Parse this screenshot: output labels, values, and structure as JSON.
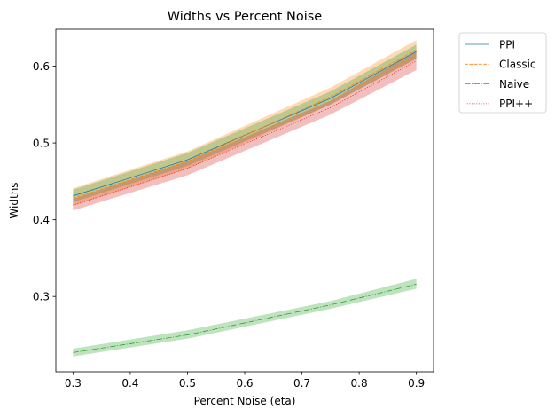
{
  "chart_data": {
    "type": "line",
    "title": "Widths vs Percent Noise",
    "xlabel": "Percent Noise (eta)",
    "ylabel": "Widths",
    "xlim": [
      0.27,
      0.93
    ],
    "ylim": [
      0.202,
      0.648
    ],
    "xticks": [
      0.3,
      0.4,
      0.5,
      0.6,
      0.7,
      0.8,
      0.9
    ],
    "yticks": [
      0.3,
      0.4,
      0.5,
      0.6
    ],
    "x": [
      0.3,
      0.5,
      0.75,
      0.9
    ],
    "grid": false,
    "legend_position": "outside-upper-right",
    "series": [
      {
        "name": "PPI",
        "color": "#1f77b4",
        "line_style": "solid",
        "band_color": "#2ca02c",
        "values": [
          0.431,
          0.478,
          0.558,
          0.619
        ],
        "lower": [
          0.423,
          0.47,
          0.55,
          0.61
        ],
        "upper": [
          0.439,
          0.487,
          0.567,
          0.628
        ]
      },
      {
        "name": "Classic",
        "color": "#ff7f0e",
        "line_style": "dashed",
        "band_color": "#ff7f0e",
        "values": [
          0.428,
          0.476,
          0.56,
          0.621
        ],
        "lower": [
          0.418,
          0.466,
          0.55,
          0.609
        ],
        "upper": [
          0.441,
          0.489,
          0.572,
          0.634
        ]
      },
      {
        "name": "Naive",
        "color": "#2ca02c",
        "line_style": "dashdot",
        "band_color": "#2ca02c",
        "values": [
          0.227,
          0.25,
          0.289,
          0.316
        ],
        "lower": [
          0.222,
          0.245,
          0.284,
          0.31
        ],
        "upper": [
          0.232,
          0.256,
          0.294,
          0.323
        ]
      },
      {
        "name": "PPI++",
        "color": "#d62728",
        "line_style": "dotted",
        "band_color": "#d62728",
        "values": [
          0.419,
          0.467,
          0.546,
          0.607
        ],
        "lower": [
          0.412,
          0.458,
          0.537,
          0.595
        ],
        "upper": [
          0.427,
          0.476,
          0.555,
          0.619
        ]
      }
    ]
  }
}
